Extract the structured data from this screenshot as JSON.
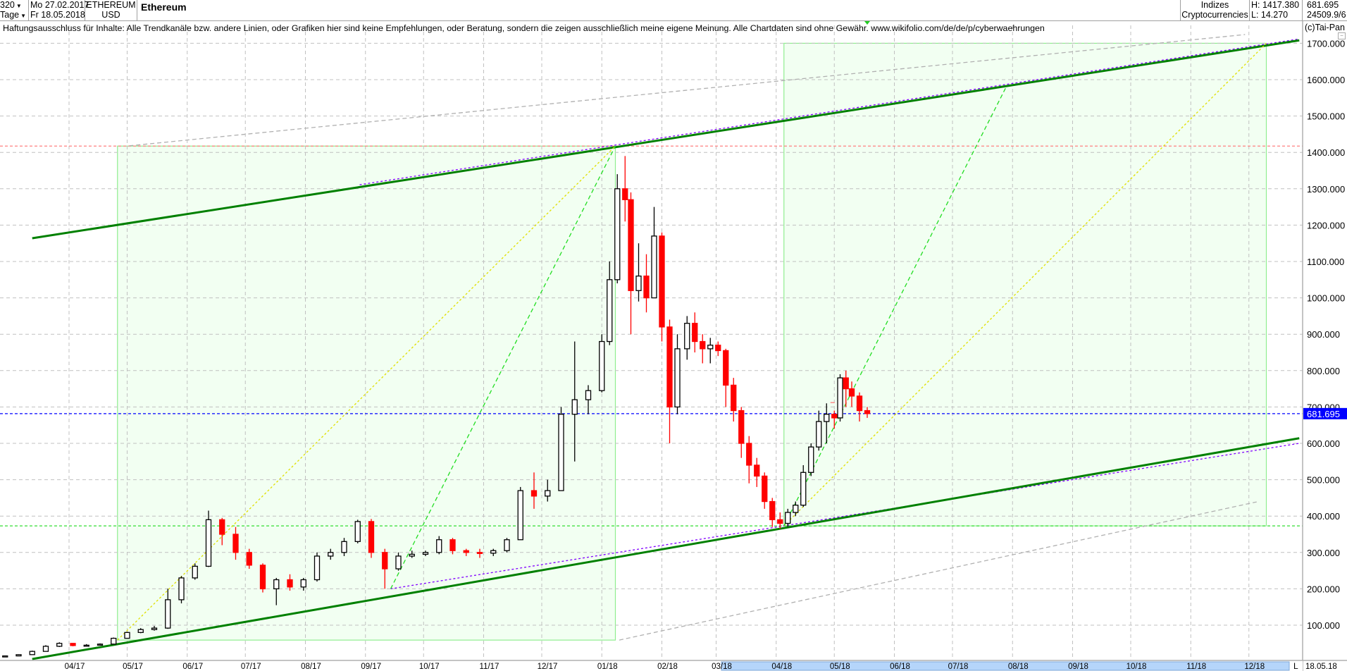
{
  "header": {
    "bars_count": "320",
    "period": "Tage",
    "date_from": "Mo 27.02.2017",
    "date_to": "Fr 18.05.2018",
    "symbol": "ETHEREUM",
    "currency": "USD",
    "title": "Ethereum",
    "group": "Indizes",
    "subgroup": "Cryptocurrencies",
    "high": "H: 1417.380",
    "low": "L: 14.270",
    "last": "681.695",
    "volume": "24509.9/6"
  },
  "disclaimer": "Haftungsausschluss für Inhalte: Alle Trendkanäle bzw. andere Linien, oder Grafiken hier sind keine Empfehlungen, oder Beratung, sondern die zeigen ausschließlich meine eigene Meinung. Alle Chartdaten sind ohne Gewähr.  www.wikifolio.com/de/de/p/cyberwaehrungen",
  "copyright": "(c)Tai-Pan",
  "footer": {
    "scroll_marker": "L",
    "end_date": "18.05.18"
  },
  "colors": {
    "up_candle": "#000000",
    "down_candle": "#ff0000",
    "channel": "#008000",
    "parallel": "#8000ff",
    "box_fill": "#f2fff2",
    "box_border": "#90ee90",
    "last_price": "#0000ff",
    "high_line": "#ff8080",
    "low_line": "#33dd33"
  },
  "chart_data": {
    "type": "candlestick",
    "title": "Ethereum",
    "ylim": [
      0,
      1750
    ],
    "y_ticks": [
      "100.000",
      "200.000",
      "300.000",
      "400.000",
      "500.000",
      "600.000",
      "700.000",
      "800.000",
      "900.000",
      "1000.000",
      "1100.000",
      "1200.000",
      "1300.000",
      "1400.000",
      "1500.000",
      "1600.000",
      "1700.000"
    ],
    "x_ticks": [
      "04/17",
      "05/17",
      "06/17",
      "07/17",
      "08/17",
      "09/17",
      "10/17",
      "11/17",
      "12/17",
      "01/18",
      "02/18",
      "03/18",
      "04/18",
      "05/18",
      "06/18",
      "07/18",
      "08/18",
      "09/18",
      "10/18",
      "11/18",
      "12/18"
    ],
    "grid": true,
    "last_price": 681.695,
    "last_price_label": "681.695",
    "candles": [
      [
        "2017-02-27",
        15,
        16,
        14.3,
        15.5
      ],
      [
        "2017-03-06",
        15.5,
        20,
        15,
        19
      ],
      [
        "2017-03-13",
        19,
        30,
        19,
        28
      ],
      [
        "2017-03-20",
        28,
        45,
        28,
        42
      ],
      [
        "2017-03-27",
        42,
        53,
        40,
        50
      ],
      [
        "2017-04-03",
        50,
        51,
        42,
        44
      ],
      [
        "2017-04-10",
        44,
        48,
        42,
        45
      ],
      [
        "2017-04-17",
        45,
        50,
        44,
        48
      ],
      [
        "2017-04-24",
        48,
        66,
        47,
        64
      ],
      [
        "2017-05-01",
        64,
        82,
        63,
        80
      ],
      [
        "2017-05-08",
        80,
        92,
        78,
        88
      ],
      [
        "2017-05-15",
        88,
        98,
        85,
        92
      ],
      [
        "2017-05-22",
        92,
        200,
        90,
        170
      ],
      [
        "2017-05-29",
        170,
        235,
        160,
        230
      ],
      [
        "2017-06-05",
        230,
        270,
        225,
        262
      ],
      [
        "2017-06-12",
        262,
        415,
        260,
        390
      ],
      [
        "2017-06-19",
        390,
        395,
        320,
        350
      ],
      [
        "2017-06-26",
        350,
        370,
        280,
        300
      ],
      [
        "2017-07-03",
        300,
        310,
        255,
        265
      ],
      [
        "2017-07-10",
        265,
        270,
        190,
        200
      ],
      [
        "2017-07-17",
        200,
        230,
        155,
        225
      ],
      [
        "2017-07-24",
        225,
        240,
        195,
        205
      ],
      [
        "2017-07-31",
        205,
        230,
        195,
        225
      ],
      [
        "2017-08-07",
        225,
        300,
        220,
        290
      ],
      [
        "2017-08-14",
        290,
        310,
        280,
        300
      ],
      [
        "2017-08-21",
        300,
        340,
        290,
        330
      ],
      [
        "2017-08-28",
        330,
        390,
        325,
        385
      ],
      [
        "2017-09-04",
        385,
        392,
        285,
        300
      ],
      [
        "2017-09-11",
        300,
        310,
        200,
        255
      ],
      [
        "2017-09-18",
        255,
        300,
        250,
        290
      ],
      [
        "2017-09-25",
        290,
        305,
        285,
        295
      ],
      [
        "2017-10-02",
        295,
        305,
        290,
        300
      ],
      [
        "2017-10-09",
        300,
        345,
        295,
        335
      ],
      [
        "2017-10-16",
        335,
        340,
        295,
        305
      ],
      [
        "2017-10-23",
        305,
        310,
        290,
        300
      ],
      [
        "2017-10-30",
        300,
        310,
        285,
        298
      ],
      [
        "2017-11-06",
        298,
        310,
        290,
        305
      ],
      [
        "2017-11-13",
        305,
        340,
        300,
        335
      ],
      [
        "2017-11-20",
        335,
        480,
        335,
        470
      ],
      [
        "2017-11-27",
        470,
        520,
        420,
        455
      ],
      [
        "2017-12-04",
        455,
        500,
        440,
        470
      ],
      [
        "2017-12-11",
        470,
        700,
        470,
        680
      ],
      [
        "2017-12-18",
        680,
        880,
        550,
        720
      ],
      [
        "2017-12-25",
        720,
        760,
        680,
        745
      ],
      [
        "2018-01-01",
        745,
        900,
        740,
        880
      ],
      [
        "2018-01-05",
        880,
        1100,
        870,
        1050
      ],
      [
        "2018-01-09",
        1050,
        1340,
        1040,
        1300
      ],
      [
        "2018-01-13",
        1300,
        1390,
        1210,
        1270
      ],
      [
        "2018-01-16",
        1270,
        1290,
        900,
        1020
      ],
      [
        "2018-01-20",
        1020,
        1150,
        990,
        1060
      ],
      [
        "2018-01-24",
        1060,
        1120,
        960,
        1000
      ],
      [
        "2018-01-28",
        1000,
        1250,
        1000,
        1170
      ],
      [
        "2018-02-01",
        1170,
        1180,
        880,
        920
      ],
      [
        "2018-02-05",
        920,
        940,
        600,
        700
      ],
      [
        "2018-02-09",
        700,
        900,
        680,
        860
      ],
      [
        "2018-02-14",
        860,
        950,
        830,
        930
      ],
      [
        "2018-02-18",
        930,
        960,
        850,
        880
      ],
      [
        "2018-02-22",
        880,
        900,
        820,
        860
      ],
      [
        "2018-02-26",
        860,
        890,
        820,
        870
      ],
      [
        "2018-03-02",
        870,
        880,
        840,
        855
      ],
      [
        "2018-03-06",
        855,
        860,
        700,
        760
      ],
      [
        "2018-03-10",
        760,
        780,
        660,
        690
      ],
      [
        "2018-03-14",
        690,
        700,
        560,
        600
      ],
      [
        "2018-03-18",
        600,
        620,
        490,
        540
      ],
      [
        "2018-03-22",
        540,
        560,
        480,
        510
      ],
      [
        "2018-03-26",
        510,
        520,
        420,
        440
      ],
      [
        "2018-03-30",
        440,
        450,
        370,
        390
      ],
      [
        "2018-04-03",
        390,
        410,
        365,
        380
      ],
      [
        "2018-04-07",
        380,
        420,
        370,
        410
      ],
      [
        "2018-04-11",
        410,
        440,
        400,
        430
      ],
      [
        "2018-04-15",
        430,
        540,
        425,
        520
      ],
      [
        "2018-04-19",
        520,
        600,
        510,
        590
      ],
      [
        "2018-04-23",
        590,
        690,
        580,
        660
      ],
      [
        "2018-04-27",
        660,
        710,
        600,
        680
      ],
      [
        "2018-05-01",
        680,
        690,
        640,
        670
      ],
      [
        "2018-05-04",
        670,
        790,
        660,
        780
      ],
      [
        "2018-05-07",
        780,
        800,
        700,
        750
      ],
      [
        "2018-05-10",
        750,
        770,
        700,
        730
      ],
      [
        "2018-05-14",
        730,
        740,
        660,
        690
      ],
      [
        "2018-05-18",
        690,
        700,
        670,
        681.7
      ]
    ],
    "boxes": [
      {
        "from": [
          "2017-04-26",
          59
        ],
        "to": [
          "2018-01-08",
          1417.38
        ]
      },
      {
        "from": [
          "2018-04-05",
          373
        ],
        "to": [
          "2018-12-10",
          1700
        ]
      }
    ],
    "lines": [
      {
        "from": [
          "2017-05-02",
          1418
        ],
        "to": [
          "2018-11-29",
          1724
        ],
        "color": "#b0b0b0",
        "style": "dash"
      },
      {
        "from": [
          "2018-01-10",
          59
        ],
        "to": [
          "2018-12-05",
          439
        ],
        "color": "#b0b0b0",
        "style": "dash"
      },
      {
        "from": [
          "2017-08-29",
          1311
        ],
        "to": [
          "2018-12-27",
          1712
        ],
        "color": "#8000ff",
        "style": "dot"
      },
      {
        "from": [
          "2017-09-14",
          200
        ],
        "to": [
          "2018-12-27",
          600
        ],
        "color": "#8000ff",
        "style": "dot"
      },
      {
        "from": [
          "2017-03-13",
          1164
        ],
        "to": [
          "2018-12-27",
          1708
        ],
        "color": "#008000",
        "style": "solid"
      },
      {
        "from": [
          "2017-03-13",
          7
        ],
        "to": [
          "2018-12-27",
          614
        ],
        "color": "#008000",
        "style": "solid"
      },
      {
        "from": [
          "2017-04-26",
          59
        ],
        "to": [
          "2018-01-08",
          1417.38
        ],
        "color": "#e0e000",
        "style": "dot"
      },
      {
        "from": [
          "2017-09-14",
          200
        ],
        "to": [
          "2018-01-08",
          1417.38
        ],
        "color": "#22dd22",
        "style": "dash"
      },
      {
        "from": [
          "2018-04-05",
          373
        ],
        "to": [
          "2018-12-10",
          1700
        ],
        "color": "#e0e000",
        "style": "dot"
      },
      {
        "from": [
          "2018-04-05",
          373
        ],
        "to": [
          "2018-07-29",
          1583
        ],
        "color": "#22dd22",
        "style": "dash"
      },
      {
        "from": [
          "2018-04-29",
          712
        ],
        "to": [
          "2018-05-05",
          712
        ],
        "color": "#ff8080",
        "style": "dash"
      }
    ],
    "hlines": [
      {
        "value": 1417.38,
        "color": "#ff8080"
      },
      {
        "value": 373,
        "color": "#33dd33"
      },
      {
        "value": 681.695,
        "color": "#0000ff"
      }
    ]
  }
}
